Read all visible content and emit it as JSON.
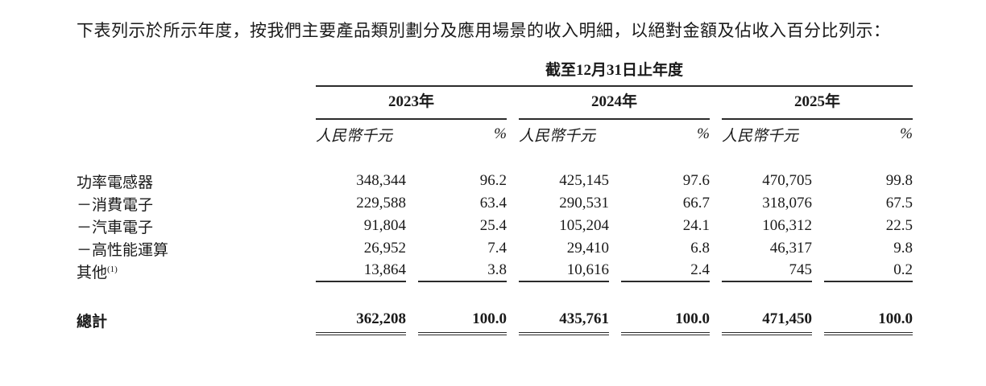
{
  "page": {
    "intro": "下表列示於所示年度，按我們主要產品類別劃分及應用場景的收入明細，以絕對金額及佔收入百分比列示："
  },
  "table": {
    "period_header": "截至12月31日止年度",
    "years": [
      "2023年",
      "2024年",
      "2025年"
    ],
    "unit_label": "人民幣千元",
    "pct_label": "%",
    "rows": [
      {
        "label": "功率電感器",
        "values": [
          "348,344",
          "96.2",
          "425,145",
          "97.6",
          "470,705",
          "99.8"
        ]
      },
      {
        "label": "－消費電子",
        "values": [
          "229,588",
          "63.4",
          "290,531",
          "66.7",
          "318,076",
          "67.5"
        ]
      },
      {
        "label": "－汽車電子",
        "values": [
          "91,804",
          "25.4",
          "105,204",
          "24.1",
          "106,312",
          "22.5"
        ]
      },
      {
        "label": "－高性能運算",
        "values": [
          "26,952",
          "7.4",
          "29,410",
          "6.8",
          "46,317",
          "9.8"
        ]
      },
      {
        "label": "其他",
        "footnote_sup": "(1)",
        "values": [
          "13,864",
          "3.8",
          "10,616",
          "2.4",
          "745",
          "0.2"
        ]
      }
    ],
    "total": {
      "label": "總計",
      "values": [
        "362,208",
        "100.0",
        "435,761",
        "100.0",
        "471,450",
        "100.0"
      ]
    }
  },
  "colors": {
    "text": "#1a1a1a",
    "rule": "#2b2b2b",
    "background": "#ffffff"
  }
}
